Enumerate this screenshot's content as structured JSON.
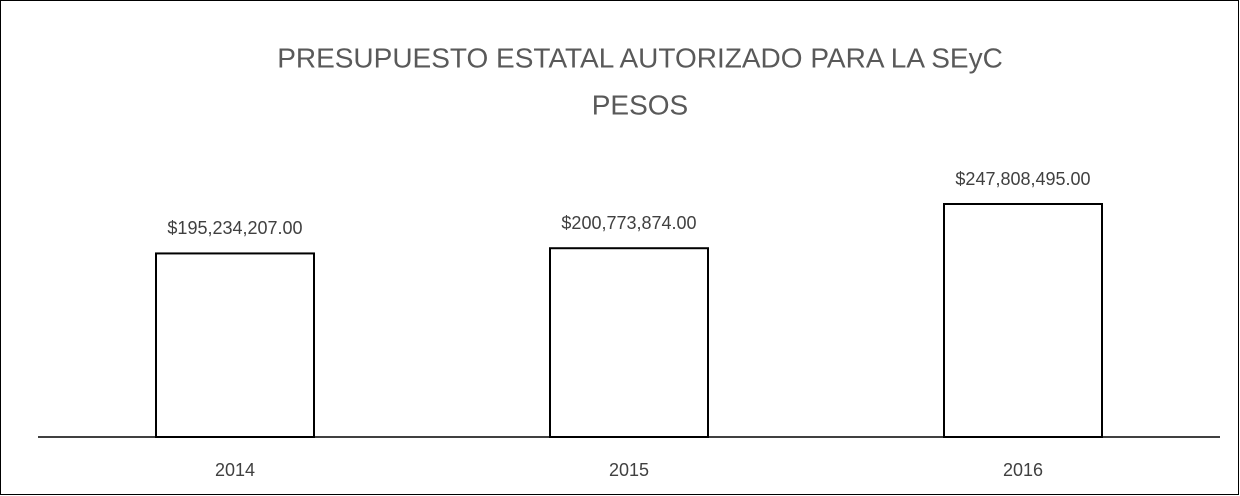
{
  "chart_data": {
    "type": "bar",
    "title": "PRESUPUESTO ESTATAL AUTORIZADO PARA LA SEyC",
    "subtitle": "PESOS",
    "categories": [
      "2014",
      "2015",
      "2016"
    ],
    "values": [
      195234207,
      200773874,
      247808495
    ],
    "value_labels": [
      "$195,234,207.00",
      "$200,773,874.00",
      "$247,808,495.00"
    ],
    "color": "#ffffff"
  }
}
